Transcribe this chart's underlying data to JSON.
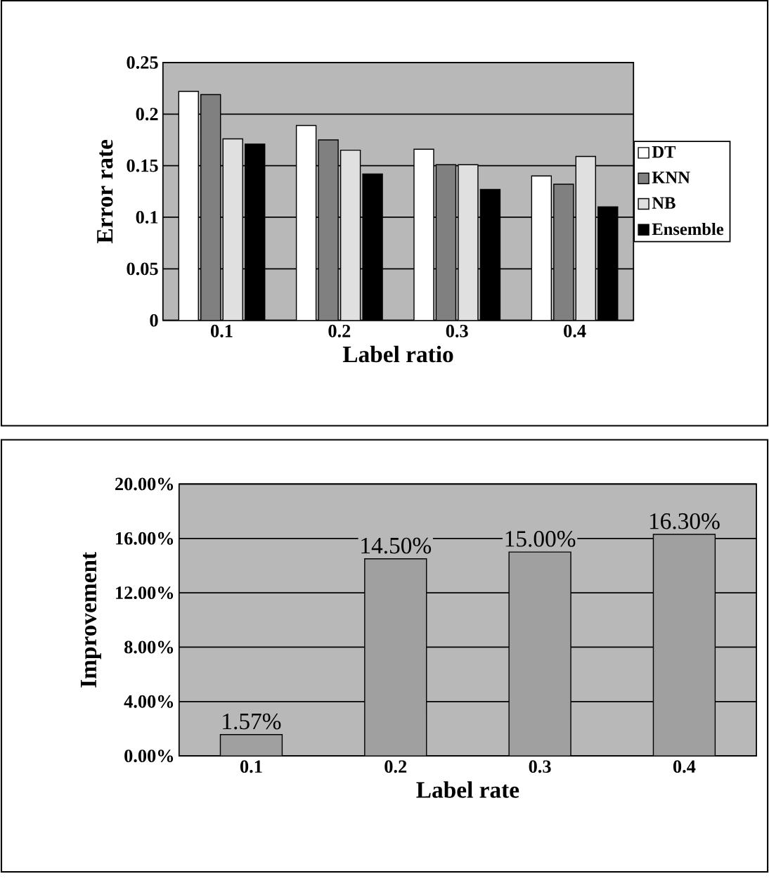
{
  "chart_data": [
    {
      "type": "bar",
      "xlabel": "Label ratio",
      "ylabel": "Error rate",
      "categories": [
        "0.1",
        "0.2",
        "0.3",
        "0.4"
      ],
      "series": [
        {
          "name": "DT",
          "color": "#ffffff",
          "values": [
            0.222,
            0.189,
            0.166,
            0.14
          ]
        },
        {
          "name": "KNN",
          "color": "#808080",
          "values": [
            0.219,
            0.175,
            0.151,
            0.132
          ]
        },
        {
          "name": "NB",
          "color": "#e0e0e0",
          "values": [
            0.176,
            0.165,
            0.151,
            0.159
          ]
        },
        {
          "name": "Ensemble",
          "color": "#000000",
          "values": [
            0.171,
            0.142,
            0.127,
            0.11
          ]
        }
      ],
      "ylim": [
        0,
        0.25
      ],
      "yticks": [
        0,
        0.05,
        0.1,
        0.15,
        0.2,
        0.25
      ],
      "grid": "y",
      "legend": "right"
    },
    {
      "type": "bar",
      "xlabel": "Label rate",
      "ylabel": "Improvement",
      "categories": [
        "0.1",
        "0.2",
        "0.3",
        "0.4"
      ],
      "values": [
        1.57,
        14.5,
        15.0,
        16.3
      ],
      "color": "#a0a0a0",
      "value_labels": [
        "1.57%",
        "14.50%",
        "15.00%",
        "16.30%"
      ],
      "ylim": [
        0,
        20
      ],
      "yticks": [
        {
          "value": 0,
          "label": "0.00%"
        },
        {
          "value": 4,
          "label": "4.00%"
        },
        {
          "value": 8,
          "label": "8.00%"
        },
        {
          "value": 12,
          "label": "12.00%"
        },
        {
          "value": 16,
          "label": "16.00%"
        },
        {
          "value": 20,
          "label": "20.00%"
        }
      ],
      "grid": "y"
    }
  ]
}
